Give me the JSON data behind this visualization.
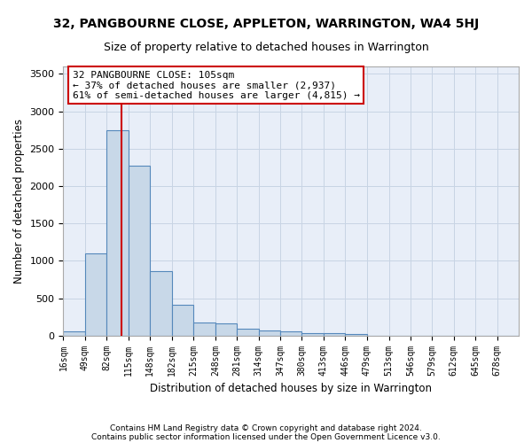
{
  "title": "32, PANGBOURNE CLOSE, APPLETON, WARRINGTON, WA4 5HJ",
  "subtitle": "Size of property relative to detached houses in Warrington",
  "xlabel": "Distribution of detached houses by size in Warrington",
  "ylabel": "Number of detached properties",
  "footer_line1": "Contains HM Land Registry data © Crown copyright and database right 2024.",
  "footer_line2": "Contains public sector information licensed under the Open Government Licence v3.0.",
  "bin_labels": [
    "16sqm",
    "49sqm",
    "82sqm",
    "115sqm",
    "148sqm",
    "182sqm",
    "215sqm",
    "248sqm",
    "281sqm",
    "314sqm",
    "347sqm",
    "380sqm",
    "413sqm",
    "446sqm",
    "479sqm",
    "513sqm",
    "546sqm",
    "579sqm",
    "612sqm",
    "645sqm",
    "678sqm"
  ],
  "bar_values": [
    50,
    1100,
    2750,
    2270,
    860,
    415,
    175,
    160,
    90,
    65,
    50,
    30,
    30,
    20,
    0,
    0,
    0,
    0,
    0,
    0,
    0
  ],
  "bin_edges": [
    16,
    49,
    82,
    115,
    148,
    182,
    215,
    248,
    281,
    314,
    347,
    380,
    413,
    446,
    479,
    513,
    546,
    579,
    612,
    645,
    678,
    711
  ],
  "property_size": 105,
  "red_line_x": 105,
  "annotation_line1": "32 PANGBOURNE CLOSE: 105sqm",
  "annotation_line2": "← 37% of detached houses are smaller (2,937)",
  "annotation_line3": "61% of semi-detached houses are larger (4,815) →",
  "bar_color": "#c8d8e8",
  "bar_edge_color": "#5588bb",
  "red_line_color": "#cc0000",
  "annotation_box_edge_color": "#cc0000",
  "grid_color": "#c8d4e4",
  "background_color": "#e8eef8",
  "ylim": [
    0,
    3600
  ],
  "yticks": [
    0,
    500,
    1000,
    1500,
    2000,
    2500,
    3000,
    3500
  ]
}
